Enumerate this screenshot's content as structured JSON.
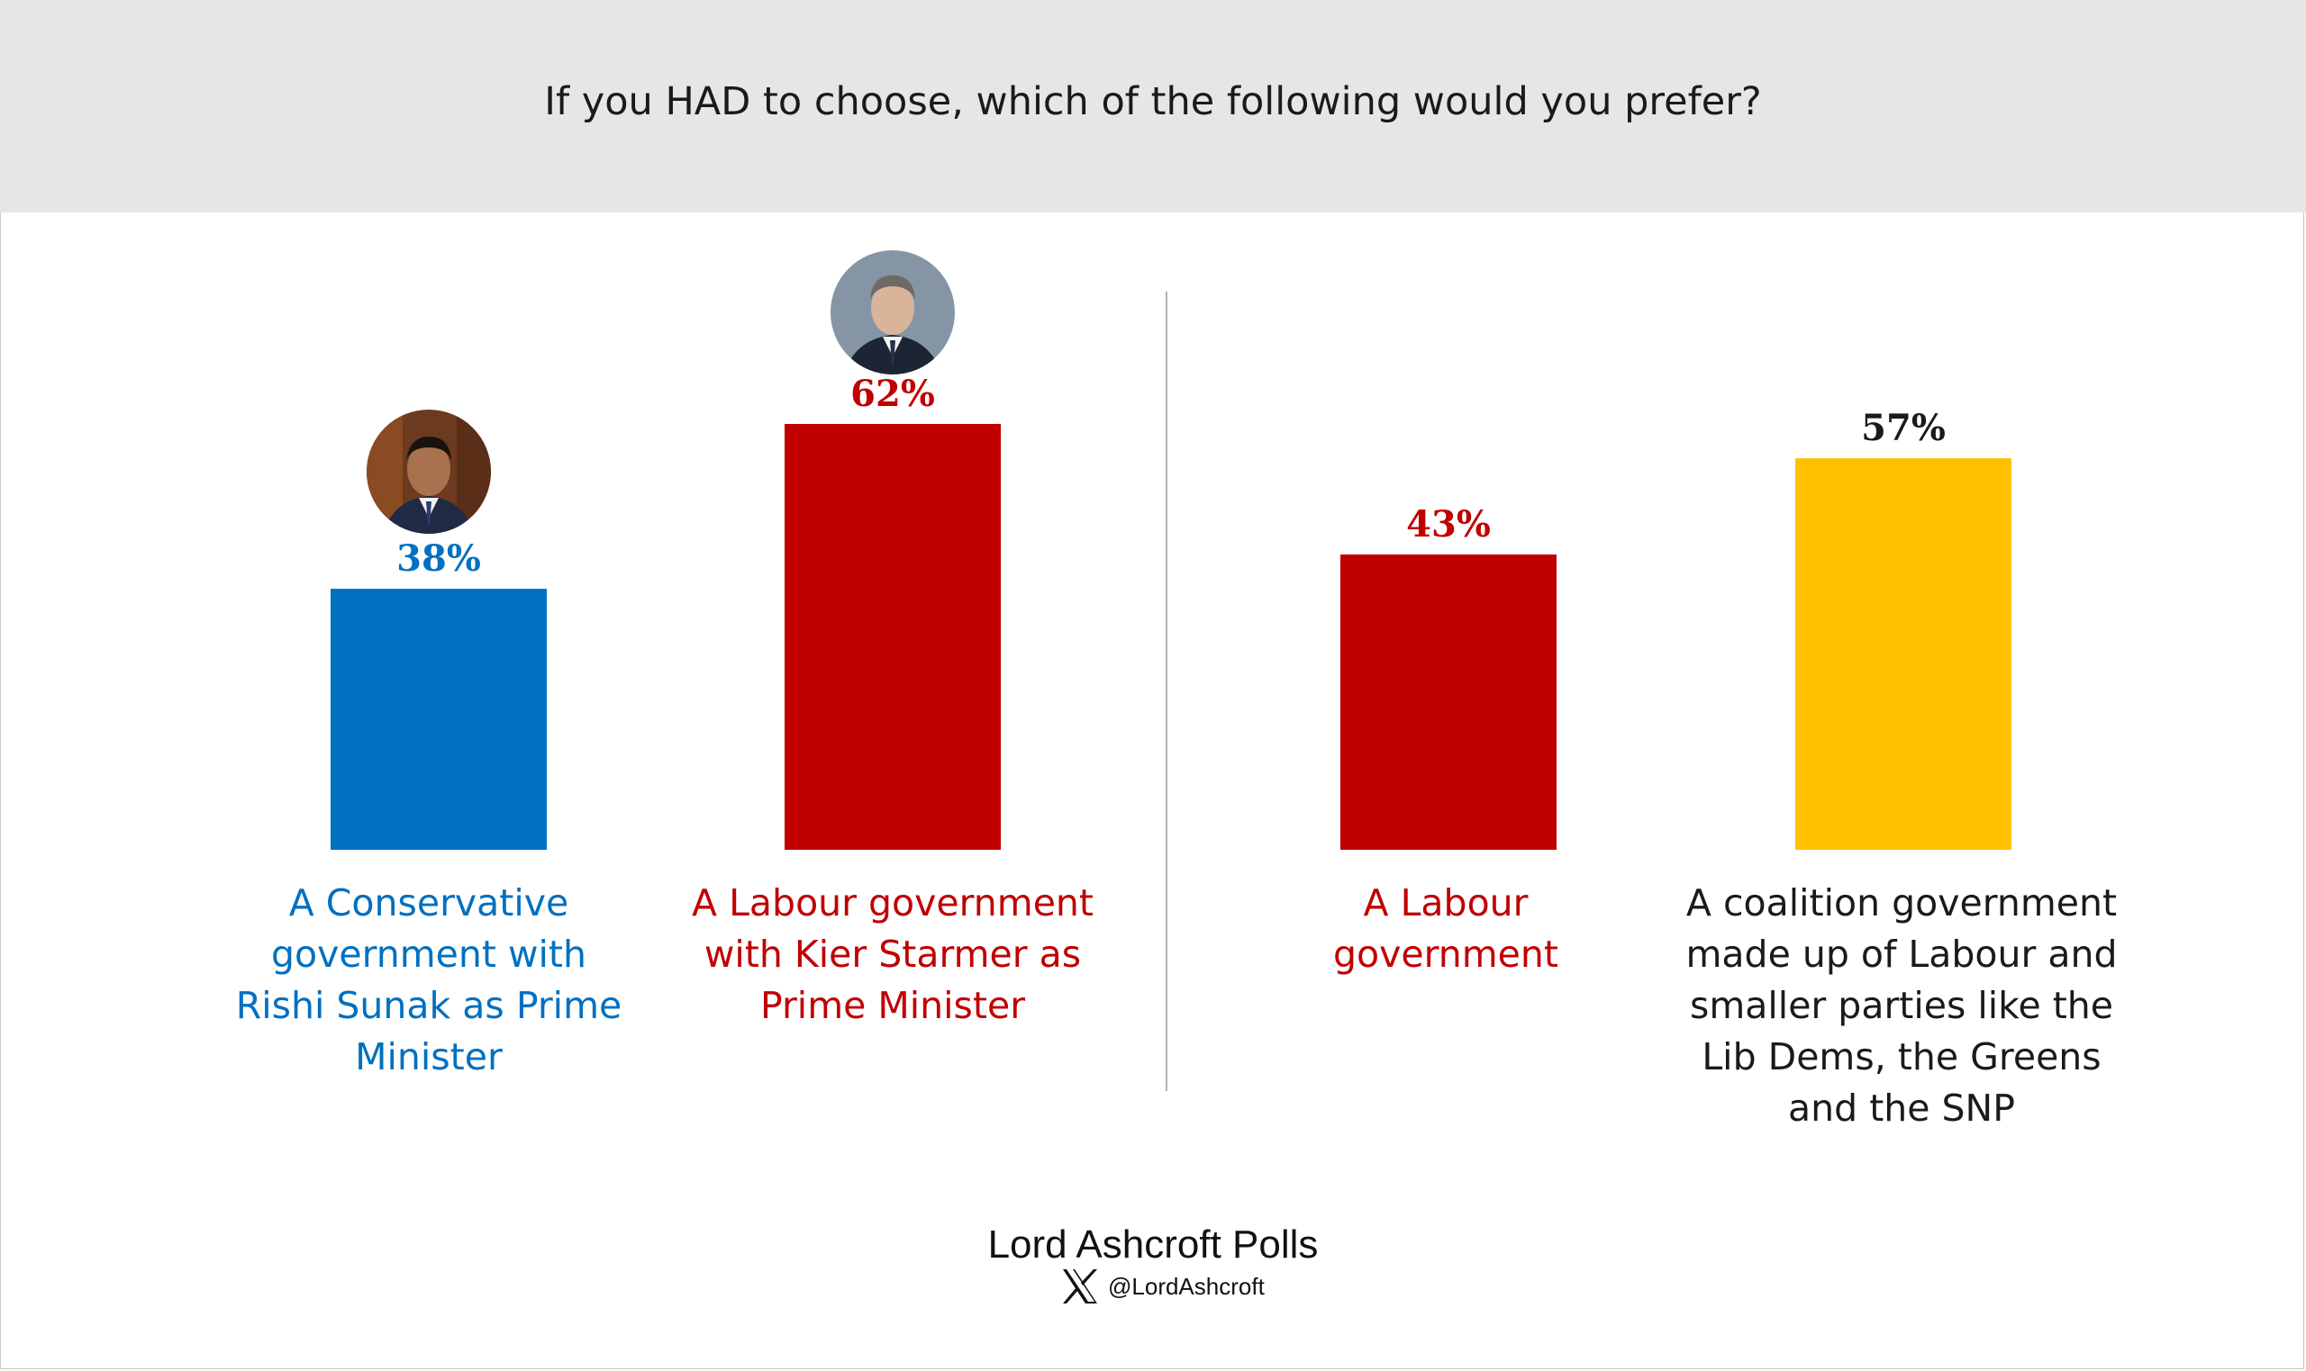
{
  "title": "If you HAD to choose, which of the following would you prefer?",
  "colors": {
    "conservative": "#0070c0",
    "labour": "#c00000",
    "coalition": "#ffc000",
    "value_dark": "#1a1a1a",
    "header_bg": "#e7e6e6"
  },
  "chart_data": [
    {
      "type": "bar",
      "categories": [
        "A Conservative government with Rishi Sunak as Prime Minister",
        "A Labour government with Kier Starmer as Prime Minister"
      ],
      "values": [
        38,
        62
      ],
      "value_labels": [
        "38%",
        "62%"
      ],
      "bar_colors": [
        "#0070c0",
        "#c00000"
      ],
      "label_colors": [
        "#0070c0",
        "#c00000"
      ],
      "value_label_colors": [
        "#0070c0",
        "#c00000"
      ],
      "ylim": [
        0,
        100
      ],
      "grid": false
    },
    {
      "type": "bar",
      "categories": [
        "A Labour government",
        "A coalition government made up of Labour and smaller parties like the Lib Dems, the Greens and the SNP"
      ],
      "values": [
        43,
        57
      ],
      "value_labels": [
        "43%",
        "57%"
      ],
      "bar_colors": [
        "#c00000",
        "#ffc000"
      ],
      "label_colors": [
        "#c00000",
        "#1a1a1a"
      ],
      "value_label_colors": [
        "#c00000",
        "#1a1a1a"
      ],
      "ylim": [
        0,
        100
      ],
      "grid": false
    }
  ],
  "avatars": [
    "rishi-sunak-portrait",
    "keir-starmer-portrait"
  ],
  "footer": {
    "title": "Lord Ashcroft Polls",
    "handle": "@LordAshcroft",
    "icon": "x-logo-icon"
  }
}
